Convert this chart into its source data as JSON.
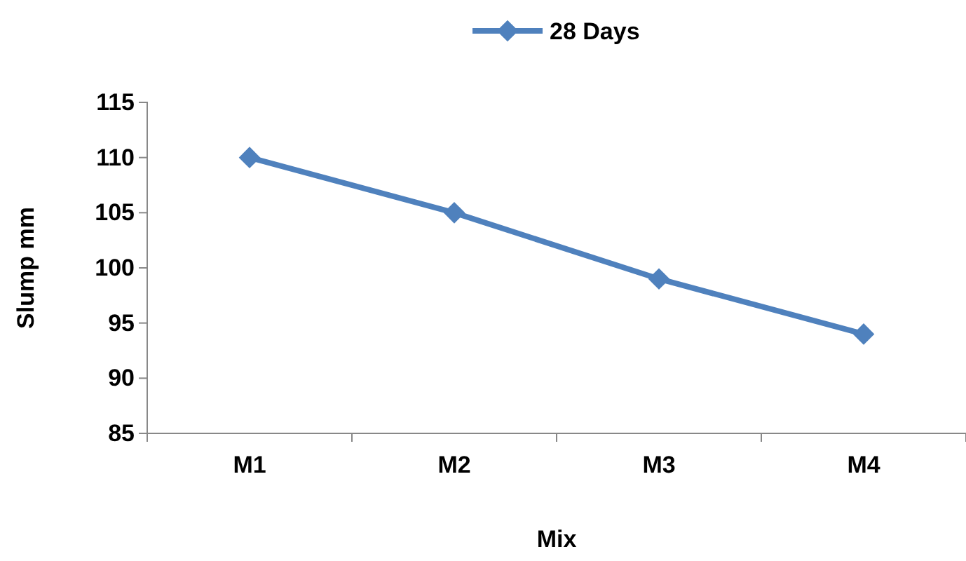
{
  "chart_data": {
    "type": "line",
    "xlabel": "Mix",
    "ylabel": "Slump mm",
    "categories": [
      "M1",
      "M2",
      "M3",
      "M4"
    ],
    "series": [
      {
        "name": "28 Days",
        "color": "#4f81bd",
        "values": [
          110,
          105,
          99,
          94
        ]
      }
    ],
    "ylim": [
      85,
      115
    ],
    "yticks": [
      85,
      90,
      95,
      100,
      105,
      110,
      115
    ],
    "grid": false,
    "legend": "top",
    "marker": "diamond",
    "line_style": "solid"
  }
}
